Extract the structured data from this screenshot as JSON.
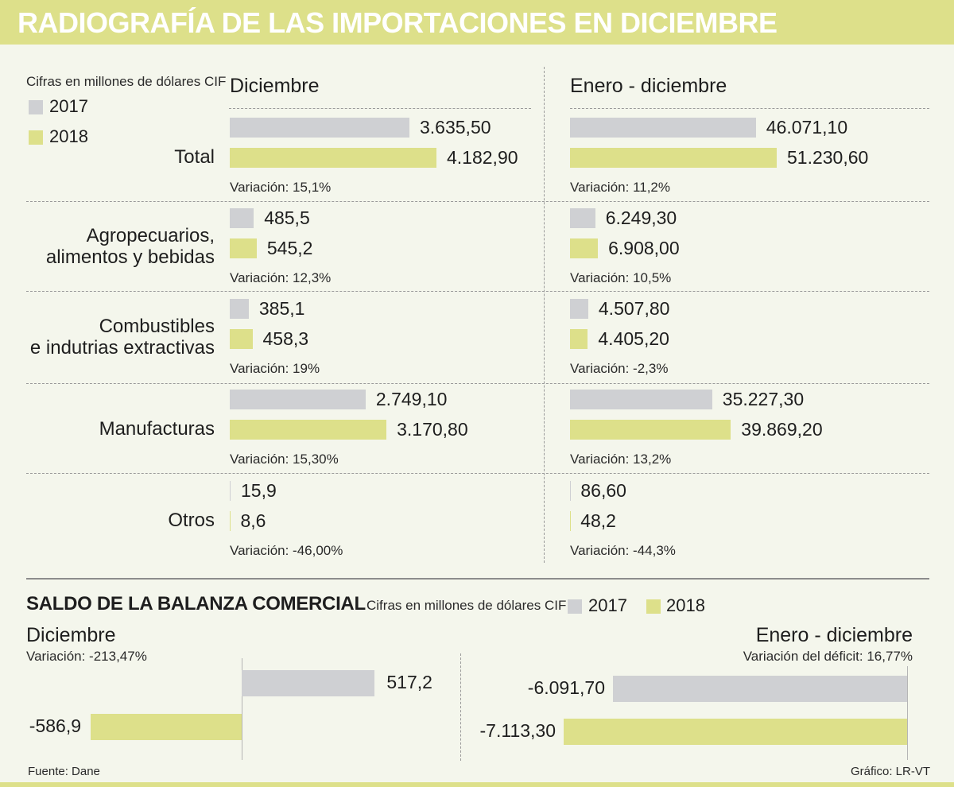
{
  "title": "RADIOGRAFÍA DE LAS IMPORTACIONES EN DICIEMBRE",
  "legend": {
    "note": "Cifras en millones de dólares CIF",
    "items": [
      {
        "label": "2017",
        "color": "#cfd0d3"
      },
      {
        "label": "2018",
        "color": "#dde08a"
      }
    ]
  },
  "colors": {
    "c2017": "#cfd0d3",
    "c2018": "#dde08a",
    "title_bg": "#dde08a"
  },
  "column_headers": {
    "dec": "Diciembre",
    "year": "Enero - diciembre"
  },
  "chart_data": [
    {
      "type": "bar",
      "title": "RADIOGRAFÍA DE LAS IMPORTACIONES EN DICIEMBRE",
      "subtitle": "Cifras en millones de dólares CIF",
      "legend": [
        "2017",
        "2018"
      ],
      "categories": [
        "Total",
        "Agropecuarios, alimentos y bebidas",
        "Combustibles e indutrias extractivas",
        "Manufacturas",
        "Otros"
      ],
      "category_lines": [
        [
          "Total"
        ],
        [
          "Agropecuarios,",
          "alimentos y bebidas"
        ],
        [
          "Combustibles",
          "e indutrias extractivas"
        ],
        [
          "Manufacturas"
        ],
        [
          "Otros"
        ]
      ],
      "panels": [
        {
          "key": "dec",
          "name": "Diciembre",
          "series": [
            {
              "name": "2017",
              "values": [
                3635.5,
                485.5,
                385.1,
                2749.1,
                15.9
              ],
              "labels": [
                "3.635,50",
                "485,5",
                "385,1",
                "2.749,10",
                "15,9"
              ]
            },
            {
              "name": "2018",
              "values": [
                4182.9,
                545.2,
                458.3,
                3170.8,
                8.6
              ],
              "labels": [
                "4.182,90",
                "545,2",
                "458,3",
                "3.170,80",
                "8,6"
              ]
            }
          ],
          "variations": [
            "Variación: 15,1%",
            "Variación: 12,3%",
            "Variación: 19%",
            "Variación: 15,30%",
            "Variación: -46,00%"
          ]
        },
        {
          "key": "year",
          "name": "Enero - diciembre",
          "series": [
            {
              "name": "2017",
              "values": [
                46071.1,
                6249.3,
                4507.8,
                35227.3,
                86.6
              ],
              "labels": [
                "46.071,10",
                "6.249,30",
                "4.507,80",
                "35.227,30",
                "86,60"
              ]
            },
            {
              "name": "2018",
              "values": [
                51230.6,
                6908.0,
                4405.2,
                39869.2,
                48.2
              ],
              "labels": [
                "51.230,60",
                "6.908,00",
                "4.405,20",
                "39.869,20",
                "48,2"
              ]
            }
          ],
          "variations": [
            "Variación: 11,2%",
            "Variación: 10,5%",
            "Variación: -2,3%",
            "Variación: 13,2%",
            "Variación: -44,3%"
          ]
        }
      ]
    },
    {
      "type": "bar",
      "title": "SALDO DE LA BALANZA COMERCIAL",
      "subtitle": "Cifras en millones de dólares CIF",
      "legend": [
        "2017",
        "2018"
      ],
      "panels": [
        {
          "key": "dec",
          "name": "Diciembre",
          "variation": "Variación: -213,47%",
          "series": [
            {
              "name": "2017",
              "value": 517.2,
              "label": "517,2"
            },
            {
              "name": "2018",
              "value": -586.9,
              "label": "-586,9"
            }
          ]
        },
        {
          "key": "year",
          "name": "Enero - diciembre",
          "variation": "Variación del déficit: 16,77%",
          "series": [
            {
              "name": "2017",
              "value": -6091.7,
              "label": "-6.091,70"
            },
            {
              "name": "2018",
              "value": -7113.3,
              "label": "-7.113,30"
            }
          ]
        }
      ]
    }
  ],
  "footer": {
    "source": "Fuente: Dane",
    "credit": "Gráfico: LR-VT"
  }
}
